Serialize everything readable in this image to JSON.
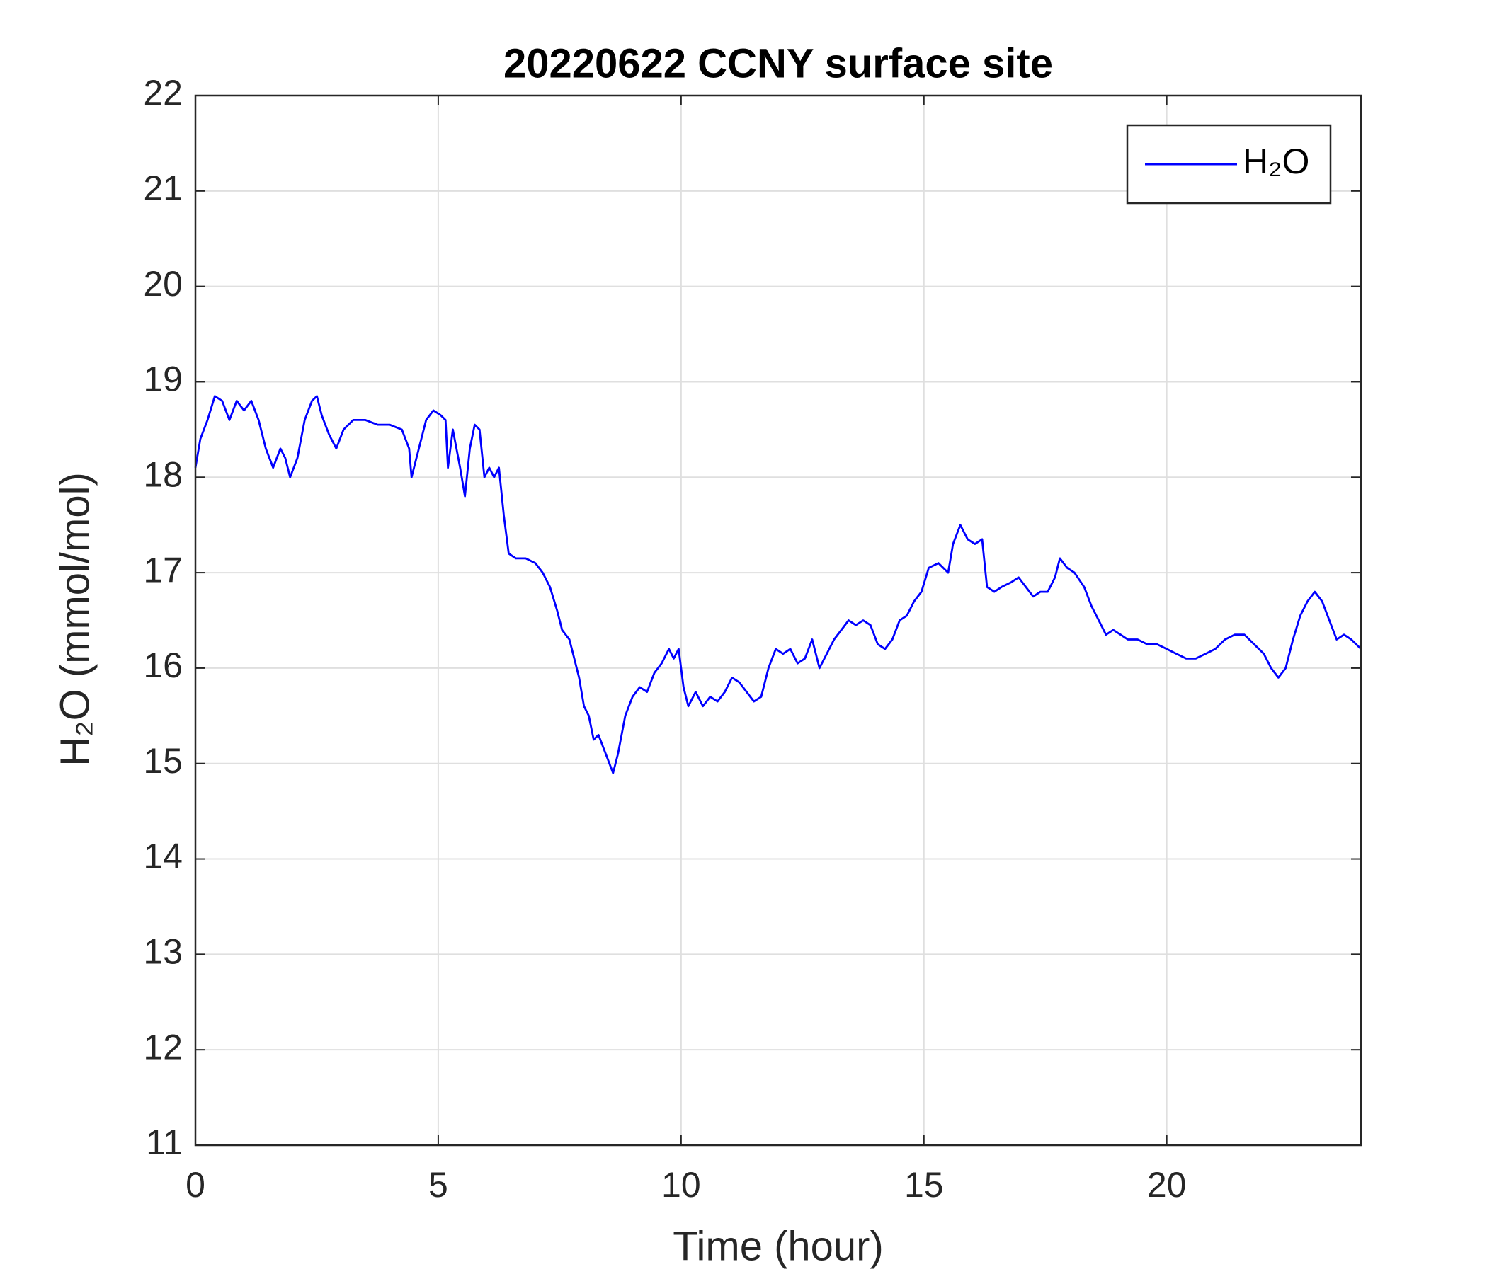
{
  "chart_data": {
    "type": "line",
    "title": "20220622 CCNY surface site",
    "x_label": "Time (hour)",
    "y_label": "H₂O (mmol/mol)",
    "xlim": [
      0,
      24
    ],
    "xticks": [
      0,
      5,
      10,
      15,
      20
    ],
    "ylim": [
      11,
      22
    ],
    "yticks": [
      11,
      12,
      13,
      14,
      15,
      16,
      17,
      18,
      19,
      20,
      21,
      22
    ],
    "grid": true,
    "legend": "top-right",
    "x": [
      0,
      0.1,
      0.25,
      0.4,
      0.55,
      0.7,
      0.85,
      1.0,
      1.15,
      1.3,
      1.45,
      1.6,
      1.75,
      1.85,
      1.95,
      2.1,
      2.25,
      2.4,
      2.5,
      2.6,
      2.75,
      2.9,
      3.05,
      3.25,
      3.5,
      3.75,
      4.0,
      4.25,
      4.4,
      4.45,
      4.6,
      4.75,
      4.9,
      5.05,
      5.15,
      5.2,
      5.3,
      5.45,
      5.55,
      5.65,
      5.75,
      5.85,
      5.95,
      6.05,
      6.15,
      6.25,
      6.35,
      6.45,
      6.6,
      6.8,
      7.0,
      7.15,
      7.3,
      7.45,
      7.55,
      7.7,
      7.8,
      7.9,
      8.0,
      8.1,
      8.2,
      8.3,
      8.45,
      8.6,
      8.7,
      8.85,
      9.0,
      9.15,
      9.3,
      9.45,
      9.6,
      9.75,
      9.85,
      9.95,
      10.05,
      10.15,
      10.3,
      10.45,
      10.6,
      10.75,
      10.9,
      11.05,
      11.2,
      11.35,
      11.5,
      11.65,
      11.8,
      11.95,
      12.1,
      12.25,
      12.4,
      12.55,
      12.7,
      12.85,
      13.0,
      13.15,
      13.3,
      13.45,
      13.6,
      13.75,
      13.9,
      14.05,
      14.2,
      14.35,
      14.5,
      14.65,
      14.8,
      14.95,
      15.1,
      15.3,
      15.5,
      15.6,
      15.75,
      15.9,
      16.05,
      16.2,
      16.3,
      16.45,
      16.6,
      16.8,
      16.95,
      17.1,
      17.25,
      17.4,
      17.55,
      17.7,
      17.8,
      17.95,
      18.1,
      18.3,
      18.45,
      18.6,
      18.75,
      18.9,
      19.05,
      19.2,
      19.4,
      19.6,
      19.8,
      20.0,
      20.2,
      20.4,
      20.6,
      20.8,
      21.0,
      21.2,
      21.4,
      21.6,
      21.8,
      22.0,
      22.15,
      22.3,
      22.45,
      22.6,
      22.75,
      22.9,
      23.05,
      23.2,
      23.35,
      23.5,
      23.65,
      23.8,
      24.0
    ],
    "series": [
      {
        "name": "H₂O",
        "color": "#0000ff",
        "values": [
          18.1,
          18.4,
          18.6,
          18.85,
          18.8,
          18.6,
          18.8,
          18.7,
          18.8,
          18.6,
          18.3,
          18.1,
          18.3,
          18.2,
          18.0,
          18.2,
          18.6,
          18.8,
          18.85,
          18.65,
          18.45,
          18.3,
          18.5,
          18.6,
          18.6,
          18.55,
          18.55,
          18.5,
          18.3,
          18.0,
          18.3,
          18.6,
          18.7,
          18.65,
          18.6,
          18.1,
          18.5,
          18.1,
          17.8,
          18.3,
          18.55,
          18.5,
          18.0,
          18.1,
          18.0,
          18.1,
          17.6,
          17.2,
          17.15,
          17.15,
          17.1,
          17.0,
          16.85,
          16.6,
          16.4,
          16.3,
          16.1,
          15.9,
          15.6,
          15.5,
          15.25,
          15.3,
          15.1,
          14.9,
          15.1,
          15.5,
          15.7,
          15.8,
          15.75,
          15.95,
          16.05,
          16.2,
          16.1,
          16.2,
          15.8,
          15.6,
          15.75,
          15.6,
          15.7,
          15.65,
          15.75,
          15.9,
          15.85,
          15.75,
          15.65,
          15.7,
          16.0,
          16.2,
          16.15,
          16.2,
          16.05,
          16.1,
          16.3,
          16.0,
          16.15,
          16.3,
          16.4,
          16.5,
          16.45,
          16.5,
          16.45,
          16.25,
          16.2,
          16.3,
          16.5,
          16.55,
          16.7,
          16.8,
          17.05,
          17.1,
          17.0,
          17.3,
          17.5,
          17.35,
          17.3,
          17.35,
          16.85,
          16.8,
          16.85,
          16.9,
          16.95,
          16.85,
          16.75,
          16.8,
          16.8,
          16.95,
          17.15,
          17.05,
          17.0,
          16.85,
          16.65,
          16.5,
          16.35,
          16.4,
          16.35,
          16.3,
          16.3,
          16.25,
          16.25,
          16.2,
          16.15,
          16.1,
          16.1,
          16.15,
          16.2,
          16.3,
          16.35,
          16.35,
          16.25,
          16.15,
          16.0,
          15.9,
          16.0,
          16.3,
          16.55,
          16.7,
          16.8,
          16.7,
          16.5,
          16.3,
          16.35,
          16.3,
          16.2
        ]
      }
    ]
  }
}
